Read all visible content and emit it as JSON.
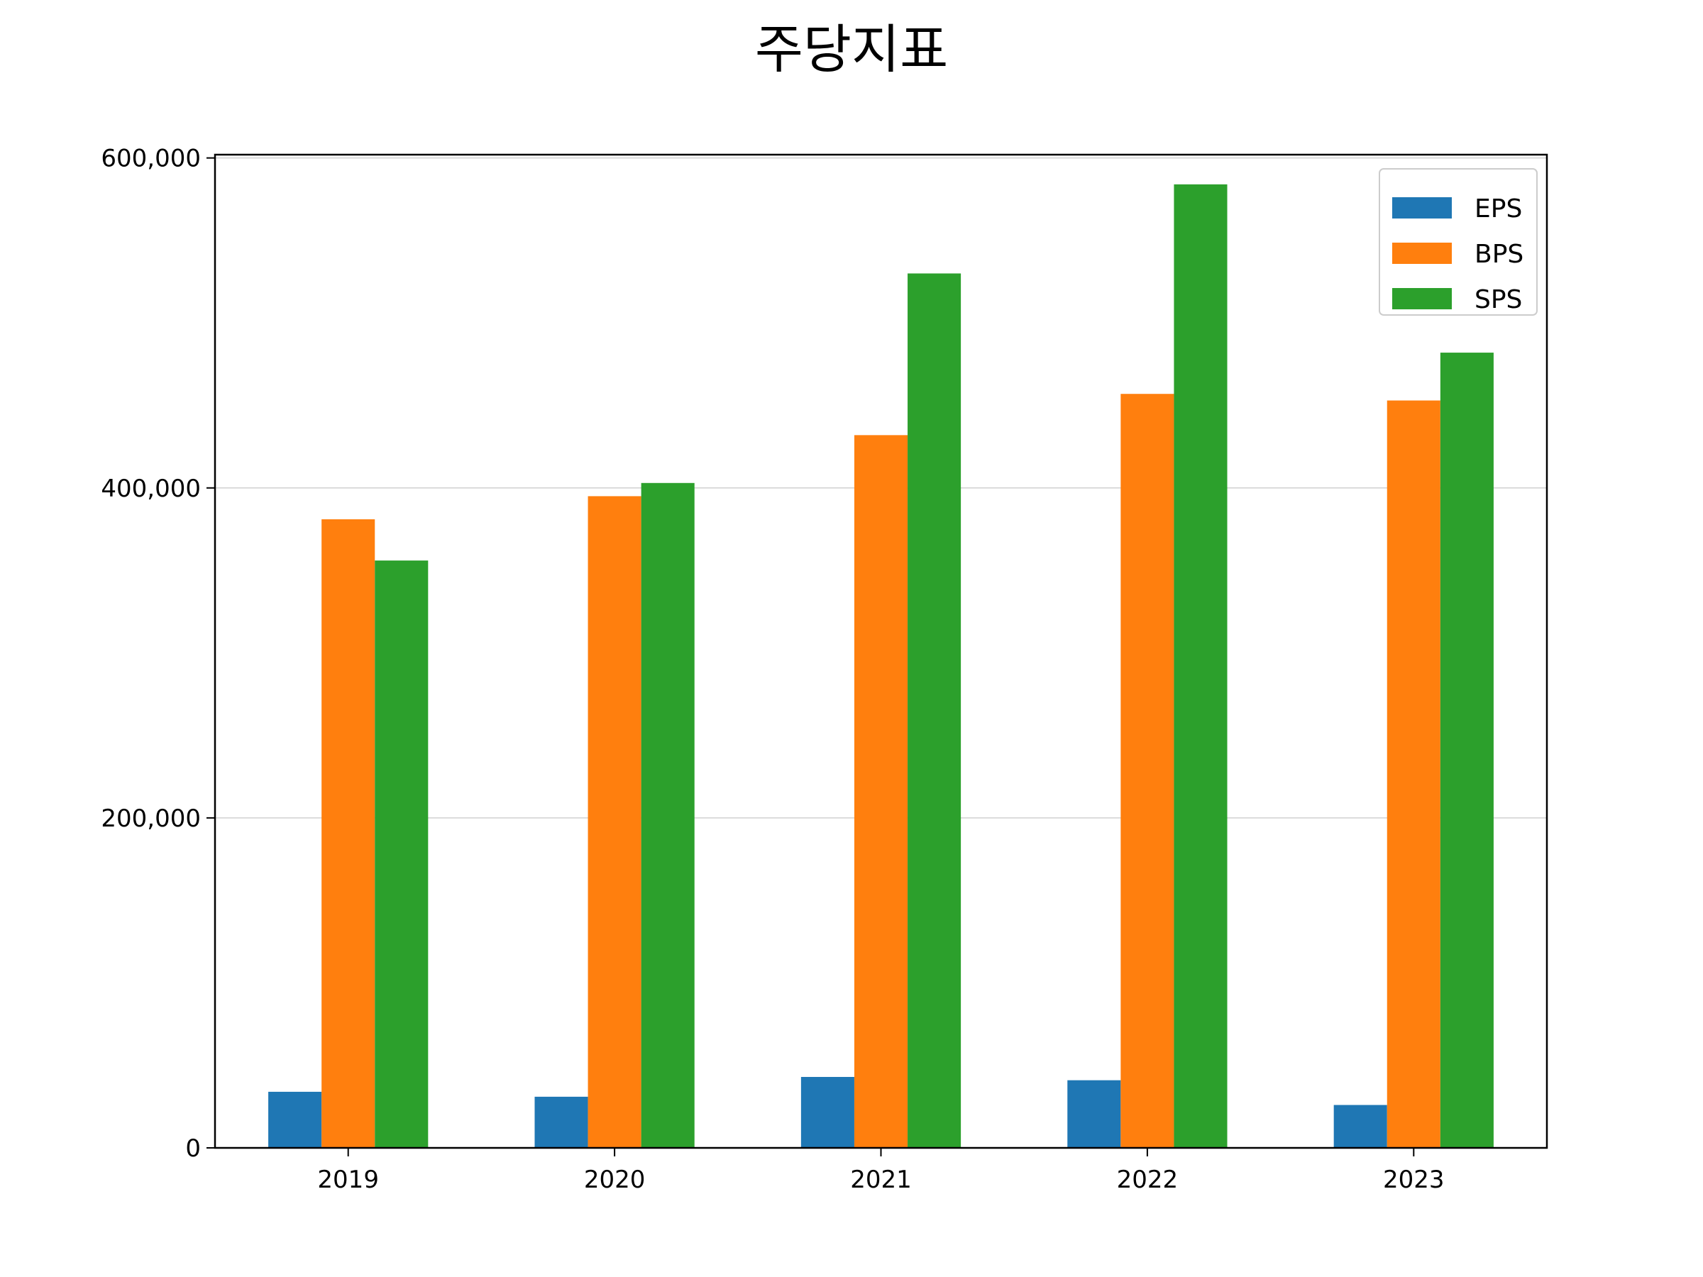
{
  "chart_data": {
    "type": "bar",
    "title": "주당지표",
    "xlabel": "",
    "ylabel": "",
    "categories": [
      "2019",
      "2020",
      "2021",
      "2022",
      "2023"
    ],
    "series": [
      {
        "name": "EPS",
        "color": "#1f77b4",
        "values": [
          34000,
          31000,
          43000,
          41000,
          26000
        ]
      },
      {
        "name": "BPS",
        "color": "#ff7f0e",
        "values": [
          381000,
          395000,
          432000,
          457000,
          453000
        ]
      },
      {
        "name": "SPS",
        "color": "#2ca02c",
        "values": [
          356000,
          403000,
          530000,
          584000,
          482000
        ]
      }
    ],
    "ylim": [
      0,
      602000
    ],
    "yticks": [
      0,
      200000,
      400000,
      600000
    ],
    "ytick_labels": [
      "0",
      "200,000",
      "400,000",
      "600,000"
    ],
    "grid": "y",
    "legend_position": "top-right"
  }
}
